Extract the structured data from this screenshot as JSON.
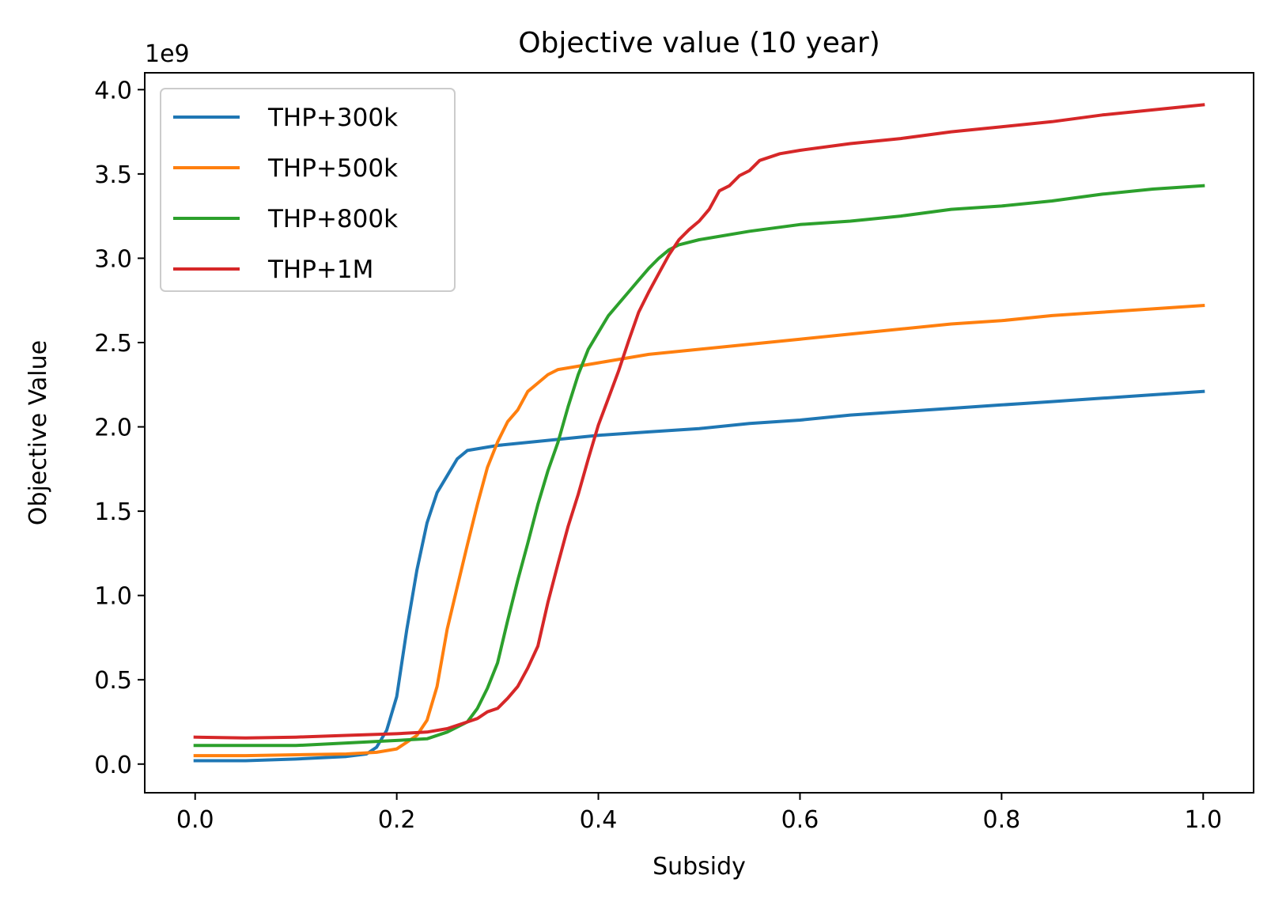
{
  "chart_data": {
    "type": "line",
    "title": "Objective value (10 year)",
    "xlabel": "Subsidy",
    "ylabel": "Objective Value",
    "y_multiplier_label": "1e9",
    "xlim": [
      -0.05,
      1.05
    ],
    "ylim": [
      -0.17,
      4.1
    ],
    "xticks": [
      0.0,
      0.2,
      0.4,
      0.6,
      0.8,
      1.0
    ],
    "xtick_labels": [
      "0.0",
      "0.2",
      "0.4",
      "0.6",
      "0.8",
      "1.0"
    ],
    "yticks": [
      0.0,
      0.5,
      1.0,
      1.5,
      2.0,
      2.5,
      3.0,
      3.5,
      4.0
    ],
    "ytick_labels": [
      "0.0",
      "0.5",
      "1.0",
      "1.5",
      "2.0",
      "2.5",
      "3.0",
      "3.5",
      "4.0"
    ],
    "grid": false,
    "legend_position": "upper-left",
    "series": [
      {
        "name": "THP+300k",
        "color": "#1f77b4",
        "points": [
          [
            0.0,
            0.02
          ],
          [
            0.05,
            0.02
          ],
          [
            0.1,
            0.03
          ],
          [
            0.15,
            0.045
          ],
          [
            0.17,
            0.06
          ],
          [
            0.18,
            0.1
          ],
          [
            0.19,
            0.2
          ],
          [
            0.2,
            0.4
          ],
          [
            0.21,
            0.8
          ],
          [
            0.22,
            1.15
          ],
          [
            0.23,
            1.43
          ],
          [
            0.24,
            1.61
          ],
          [
            0.25,
            1.71
          ],
          [
            0.26,
            1.81
          ],
          [
            0.27,
            1.86
          ],
          [
            0.3,
            1.89
          ],
          [
            0.35,
            1.92
          ],
          [
            0.4,
            1.95
          ],
          [
            0.45,
            1.97
          ],
          [
            0.5,
            1.99
          ],
          [
            0.55,
            2.02
          ],
          [
            0.6,
            2.04
          ],
          [
            0.65,
            2.07
          ],
          [
            0.7,
            2.09
          ],
          [
            0.75,
            2.11
          ],
          [
            0.8,
            2.13
          ],
          [
            0.85,
            2.15
          ],
          [
            0.9,
            2.17
          ],
          [
            0.95,
            2.19
          ],
          [
            1.0,
            2.21
          ]
        ]
      },
      {
        "name": "THP+500k",
        "color": "#ff7f0e",
        "points": [
          [
            0.0,
            0.05
          ],
          [
            0.05,
            0.05
          ],
          [
            0.1,
            0.055
          ],
          [
            0.15,
            0.06
          ],
          [
            0.18,
            0.07
          ],
          [
            0.2,
            0.09
          ],
          [
            0.21,
            0.13
          ],
          [
            0.22,
            0.17
          ],
          [
            0.23,
            0.26
          ],
          [
            0.24,
            0.46
          ],
          [
            0.25,
            0.8
          ],
          [
            0.26,
            1.05
          ],
          [
            0.27,
            1.3
          ],
          [
            0.28,
            1.54
          ],
          [
            0.29,
            1.76
          ],
          [
            0.3,
            1.91
          ],
          [
            0.31,
            2.03
          ],
          [
            0.32,
            2.1
          ],
          [
            0.33,
            2.21
          ],
          [
            0.34,
            2.26
          ],
          [
            0.35,
            2.31
          ],
          [
            0.36,
            2.34
          ],
          [
            0.4,
            2.38
          ],
          [
            0.45,
            2.43
          ],
          [
            0.5,
            2.46
          ],
          [
            0.55,
            2.49
          ],
          [
            0.6,
            2.52
          ],
          [
            0.65,
            2.55
          ],
          [
            0.7,
            2.58
          ],
          [
            0.75,
            2.61
          ],
          [
            0.8,
            2.63
          ],
          [
            0.85,
            2.66
          ],
          [
            0.9,
            2.68
          ],
          [
            0.95,
            2.7
          ],
          [
            1.0,
            2.72
          ]
        ]
      },
      {
        "name": "THP+800k",
        "color": "#2ca02c",
        "points": [
          [
            0.0,
            0.11
          ],
          [
            0.05,
            0.11
          ],
          [
            0.1,
            0.11
          ],
          [
            0.15,
            0.125
          ],
          [
            0.2,
            0.14
          ],
          [
            0.23,
            0.15
          ],
          [
            0.25,
            0.19
          ],
          [
            0.27,
            0.25
          ],
          [
            0.28,
            0.33
          ],
          [
            0.29,
            0.45
          ],
          [
            0.3,
            0.6
          ],
          [
            0.31,
            0.85
          ],
          [
            0.32,
            1.09
          ],
          [
            0.33,
            1.31
          ],
          [
            0.34,
            1.54
          ],
          [
            0.35,
            1.74
          ],
          [
            0.36,
            1.91
          ],
          [
            0.37,
            2.12
          ],
          [
            0.38,
            2.31
          ],
          [
            0.39,
            2.46
          ],
          [
            0.4,
            2.56
          ],
          [
            0.41,
            2.66
          ],
          [
            0.42,
            2.73
          ],
          [
            0.43,
            2.8
          ],
          [
            0.44,
            2.87
          ],
          [
            0.45,
            2.94
          ],
          [
            0.46,
            3.0
          ],
          [
            0.47,
            3.05
          ],
          [
            0.48,
            3.08
          ],
          [
            0.5,
            3.11
          ],
          [
            0.55,
            3.16
          ],
          [
            0.6,
            3.2
          ],
          [
            0.65,
            3.22
          ],
          [
            0.7,
            3.25
          ],
          [
            0.75,
            3.29
          ],
          [
            0.8,
            3.31
          ],
          [
            0.85,
            3.34
          ],
          [
            0.9,
            3.38
          ],
          [
            0.95,
            3.41
          ],
          [
            1.0,
            3.43
          ]
        ]
      },
      {
        "name": "THP+1M",
        "color": "#d62728",
        "points": [
          [
            0.0,
            0.16
          ],
          [
            0.05,
            0.155
          ],
          [
            0.1,
            0.16
          ],
          [
            0.15,
            0.17
          ],
          [
            0.2,
            0.18
          ],
          [
            0.23,
            0.19
          ],
          [
            0.25,
            0.21
          ],
          [
            0.27,
            0.25
          ],
          [
            0.28,
            0.27
          ],
          [
            0.29,
            0.31
          ],
          [
            0.3,
            0.33
          ],
          [
            0.31,
            0.39
          ],
          [
            0.32,
            0.46
          ],
          [
            0.33,
            0.57
          ],
          [
            0.34,
            0.7
          ],
          [
            0.35,
            0.96
          ],
          [
            0.36,
            1.19
          ],
          [
            0.37,
            1.41
          ],
          [
            0.38,
            1.6
          ],
          [
            0.39,
            1.81
          ],
          [
            0.4,
            2.01
          ],
          [
            0.41,
            2.17
          ],
          [
            0.42,
            2.33
          ],
          [
            0.43,
            2.51
          ],
          [
            0.44,
            2.68
          ],
          [
            0.45,
            2.8
          ],
          [
            0.46,
            2.91
          ],
          [
            0.47,
            3.02
          ],
          [
            0.48,
            3.11
          ],
          [
            0.49,
            3.17
          ],
          [
            0.5,
            3.22
          ],
          [
            0.51,
            3.29
          ],
          [
            0.52,
            3.4
          ],
          [
            0.53,
            3.43
          ],
          [
            0.54,
            3.49
          ],
          [
            0.55,
            3.52
          ],
          [
            0.56,
            3.58
          ],
          [
            0.58,
            3.62
          ],
          [
            0.6,
            3.64
          ],
          [
            0.65,
            3.68
          ],
          [
            0.7,
            3.71
          ],
          [
            0.75,
            3.75
          ],
          [
            0.8,
            3.78
          ],
          [
            0.85,
            3.81
          ],
          [
            0.9,
            3.85
          ],
          [
            0.95,
            3.88
          ],
          [
            1.0,
            3.91
          ]
        ]
      }
    ]
  }
}
